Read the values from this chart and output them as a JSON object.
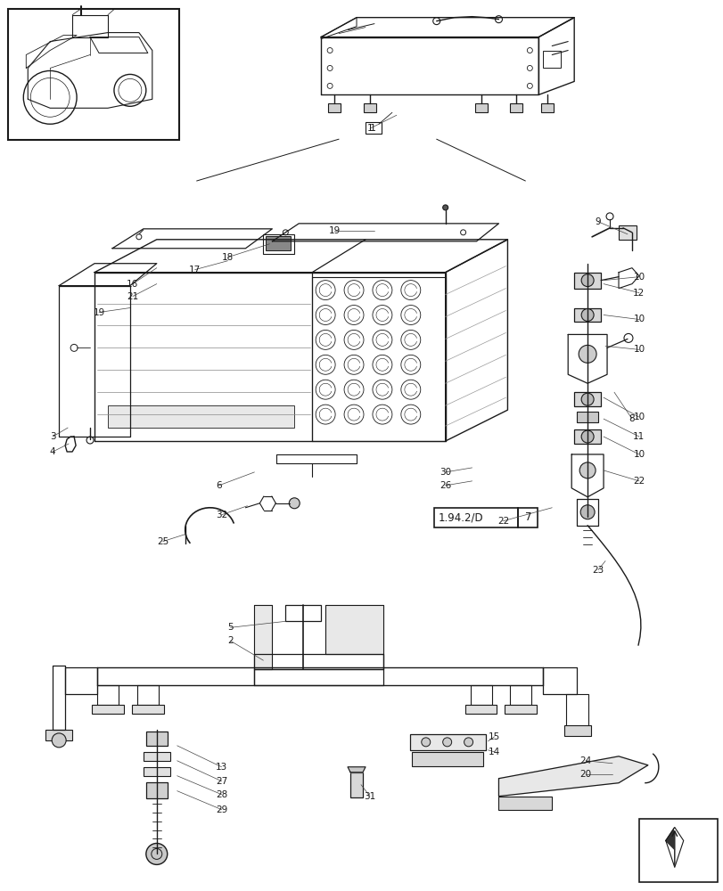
{
  "background_color": "#ffffff",
  "line_color": "#1a1a1a",
  "figure_width": 8.12,
  "figure_height": 10.0,
  "dpi": 100
}
